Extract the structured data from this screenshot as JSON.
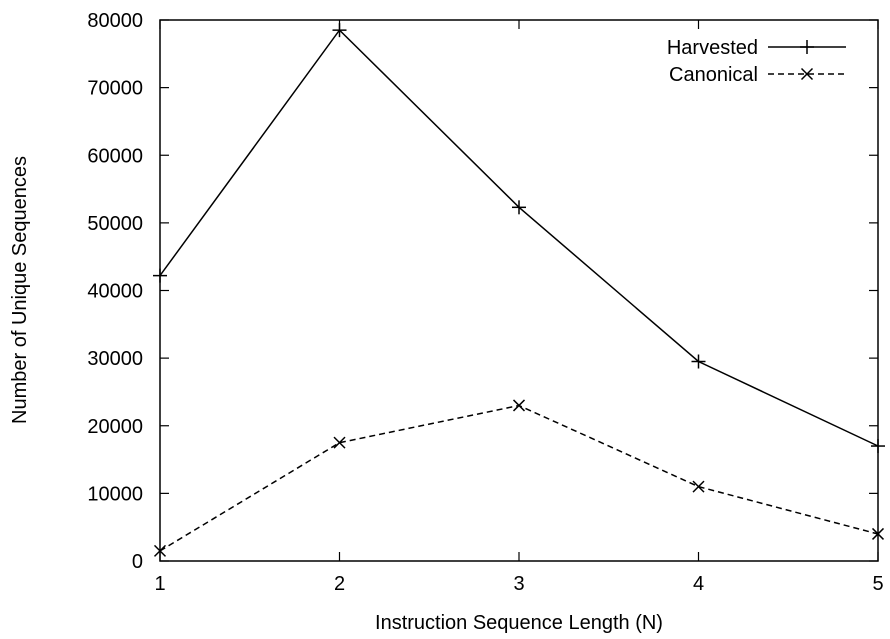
{
  "chart_data": {
    "type": "line",
    "title": "",
    "xlabel": "Instruction Sequence Length (N)",
    "ylabel": "Number of Unique Sequences",
    "x": [
      1,
      2,
      3,
      4,
      5
    ],
    "xlim": [
      1,
      5
    ],
    "ylim": [
      0,
      80000
    ],
    "xticks": [
      "1",
      "2",
      "3",
      "4",
      "5"
    ],
    "yticks": [
      "0",
      "10000",
      "20000",
      "30000",
      "40000",
      "50000",
      "60000",
      "70000",
      "80000"
    ],
    "grid": false,
    "legend_position": "top-right",
    "series": [
      {
        "name": "Harvested",
        "values": [
          42200,
          78500,
          52300,
          29500,
          17000
        ],
        "line_style": "solid",
        "marker": "plus",
        "color": "#000000"
      },
      {
        "name": "Canonical",
        "values": [
          1500,
          17500,
          23000,
          11000,
          4000
        ],
        "line_style": "dashed",
        "marker": "cross",
        "color": "#000000"
      }
    ]
  }
}
